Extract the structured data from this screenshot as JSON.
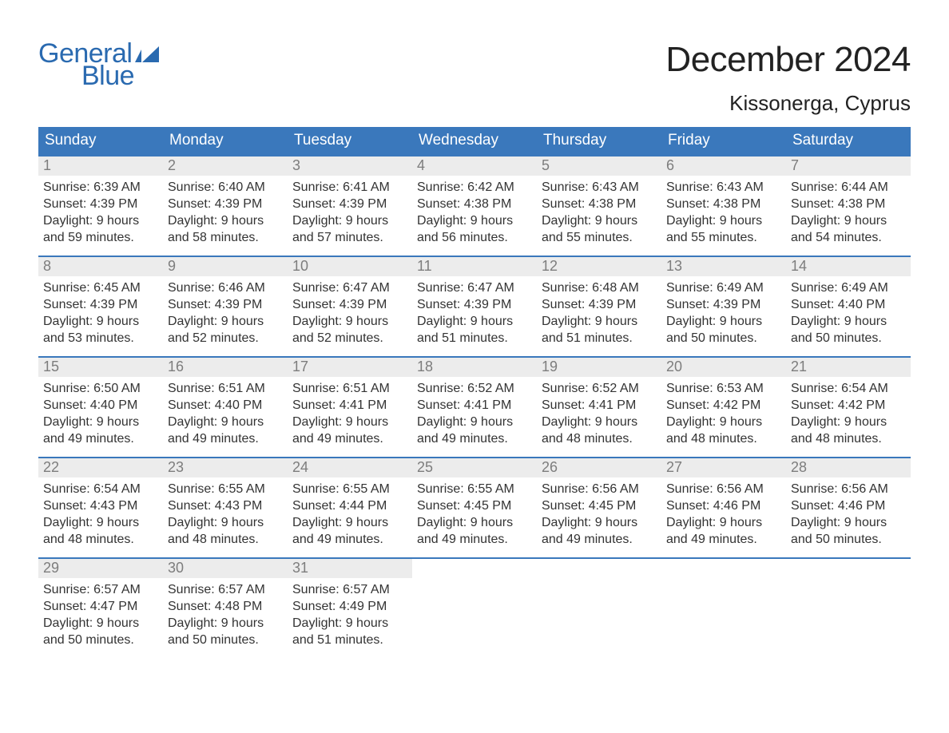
{
  "logo": {
    "word1": "General",
    "word2": "Blue",
    "flag_color": "#2a6ab0"
  },
  "title": "December 2024",
  "location": "Kissonerga, Cyprus",
  "colors": {
    "header_bg": "#3a78bc",
    "header_text": "#ffffff",
    "daynum_bg": "#ececec",
    "daynum_text": "#7d7d7d",
    "body_text": "#333333",
    "rule": "#3a78bc",
    "page_bg": "#ffffff",
    "logo_color": "#2a6ab0"
  },
  "typography": {
    "title_fontsize": 44,
    "location_fontsize": 26,
    "header_fontsize": 19,
    "daynum_fontsize": 18,
    "body_fontsize": 16,
    "font_family": "Arial"
  },
  "day_labels": [
    "Sunday",
    "Monday",
    "Tuesday",
    "Wednesday",
    "Thursday",
    "Friday",
    "Saturday"
  ],
  "weeks": [
    [
      {
        "n": "1",
        "sunrise": "Sunrise: 6:39 AM",
        "sunset": "Sunset: 4:39 PM",
        "d1": "Daylight: 9 hours",
        "d2": "and 59 minutes."
      },
      {
        "n": "2",
        "sunrise": "Sunrise: 6:40 AM",
        "sunset": "Sunset: 4:39 PM",
        "d1": "Daylight: 9 hours",
        "d2": "and 58 minutes."
      },
      {
        "n": "3",
        "sunrise": "Sunrise: 6:41 AM",
        "sunset": "Sunset: 4:39 PM",
        "d1": "Daylight: 9 hours",
        "d2": "and 57 minutes."
      },
      {
        "n": "4",
        "sunrise": "Sunrise: 6:42 AM",
        "sunset": "Sunset: 4:38 PM",
        "d1": "Daylight: 9 hours",
        "d2": "and 56 minutes."
      },
      {
        "n": "5",
        "sunrise": "Sunrise: 6:43 AM",
        "sunset": "Sunset: 4:38 PM",
        "d1": "Daylight: 9 hours",
        "d2": "and 55 minutes."
      },
      {
        "n": "6",
        "sunrise": "Sunrise: 6:43 AM",
        "sunset": "Sunset: 4:38 PM",
        "d1": "Daylight: 9 hours",
        "d2": "and 55 minutes."
      },
      {
        "n": "7",
        "sunrise": "Sunrise: 6:44 AM",
        "sunset": "Sunset: 4:38 PM",
        "d1": "Daylight: 9 hours",
        "d2": "and 54 minutes."
      }
    ],
    [
      {
        "n": "8",
        "sunrise": "Sunrise: 6:45 AM",
        "sunset": "Sunset: 4:39 PM",
        "d1": "Daylight: 9 hours",
        "d2": "and 53 minutes."
      },
      {
        "n": "9",
        "sunrise": "Sunrise: 6:46 AM",
        "sunset": "Sunset: 4:39 PM",
        "d1": "Daylight: 9 hours",
        "d2": "and 52 minutes."
      },
      {
        "n": "10",
        "sunrise": "Sunrise: 6:47 AM",
        "sunset": "Sunset: 4:39 PM",
        "d1": "Daylight: 9 hours",
        "d2": "and 52 minutes."
      },
      {
        "n": "11",
        "sunrise": "Sunrise: 6:47 AM",
        "sunset": "Sunset: 4:39 PM",
        "d1": "Daylight: 9 hours",
        "d2": "and 51 minutes."
      },
      {
        "n": "12",
        "sunrise": "Sunrise: 6:48 AM",
        "sunset": "Sunset: 4:39 PM",
        "d1": "Daylight: 9 hours",
        "d2": "and 51 minutes."
      },
      {
        "n": "13",
        "sunrise": "Sunrise: 6:49 AM",
        "sunset": "Sunset: 4:39 PM",
        "d1": "Daylight: 9 hours",
        "d2": "and 50 minutes."
      },
      {
        "n": "14",
        "sunrise": "Sunrise: 6:49 AM",
        "sunset": "Sunset: 4:40 PM",
        "d1": "Daylight: 9 hours",
        "d2": "and 50 minutes."
      }
    ],
    [
      {
        "n": "15",
        "sunrise": "Sunrise: 6:50 AM",
        "sunset": "Sunset: 4:40 PM",
        "d1": "Daylight: 9 hours",
        "d2": "and 49 minutes."
      },
      {
        "n": "16",
        "sunrise": "Sunrise: 6:51 AM",
        "sunset": "Sunset: 4:40 PM",
        "d1": "Daylight: 9 hours",
        "d2": "and 49 minutes."
      },
      {
        "n": "17",
        "sunrise": "Sunrise: 6:51 AM",
        "sunset": "Sunset: 4:41 PM",
        "d1": "Daylight: 9 hours",
        "d2": "and 49 minutes."
      },
      {
        "n": "18",
        "sunrise": "Sunrise: 6:52 AM",
        "sunset": "Sunset: 4:41 PM",
        "d1": "Daylight: 9 hours",
        "d2": "and 49 minutes."
      },
      {
        "n": "19",
        "sunrise": "Sunrise: 6:52 AM",
        "sunset": "Sunset: 4:41 PM",
        "d1": "Daylight: 9 hours",
        "d2": "and 48 minutes."
      },
      {
        "n": "20",
        "sunrise": "Sunrise: 6:53 AM",
        "sunset": "Sunset: 4:42 PM",
        "d1": "Daylight: 9 hours",
        "d2": "and 48 minutes."
      },
      {
        "n": "21",
        "sunrise": "Sunrise: 6:54 AM",
        "sunset": "Sunset: 4:42 PM",
        "d1": "Daylight: 9 hours",
        "d2": "and 48 minutes."
      }
    ],
    [
      {
        "n": "22",
        "sunrise": "Sunrise: 6:54 AM",
        "sunset": "Sunset: 4:43 PM",
        "d1": "Daylight: 9 hours",
        "d2": "and 48 minutes."
      },
      {
        "n": "23",
        "sunrise": "Sunrise: 6:55 AM",
        "sunset": "Sunset: 4:43 PM",
        "d1": "Daylight: 9 hours",
        "d2": "and 48 minutes."
      },
      {
        "n": "24",
        "sunrise": "Sunrise: 6:55 AM",
        "sunset": "Sunset: 4:44 PM",
        "d1": "Daylight: 9 hours",
        "d2": "and 49 minutes."
      },
      {
        "n": "25",
        "sunrise": "Sunrise: 6:55 AM",
        "sunset": "Sunset: 4:45 PM",
        "d1": "Daylight: 9 hours",
        "d2": "and 49 minutes."
      },
      {
        "n": "26",
        "sunrise": "Sunrise: 6:56 AM",
        "sunset": "Sunset: 4:45 PM",
        "d1": "Daylight: 9 hours",
        "d2": "and 49 minutes."
      },
      {
        "n": "27",
        "sunrise": "Sunrise: 6:56 AM",
        "sunset": "Sunset: 4:46 PM",
        "d1": "Daylight: 9 hours",
        "d2": "and 49 minutes."
      },
      {
        "n": "28",
        "sunrise": "Sunrise: 6:56 AM",
        "sunset": "Sunset: 4:46 PM",
        "d1": "Daylight: 9 hours",
        "d2": "and 50 minutes."
      }
    ],
    [
      {
        "n": "29",
        "sunrise": "Sunrise: 6:57 AM",
        "sunset": "Sunset: 4:47 PM",
        "d1": "Daylight: 9 hours",
        "d2": "and 50 minutes."
      },
      {
        "n": "30",
        "sunrise": "Sunrise: 6:57 AM",
        "sunset": "Sunset: 4:48 PM",
        "d1": "Daylight: 9 hours",
        "d2": "and 50 minutes."
      },
      {
        "n": "31",
        "sunrise": "Sunrise: 6:57 AM",
        "sunset": "Sunset: 4:49 PM",
        "d1": "Daylight: 9 hours",
        "d2": "and 51 minutes."
      },
      null,
      null,
      null,
      null
    ]
  ]
}
